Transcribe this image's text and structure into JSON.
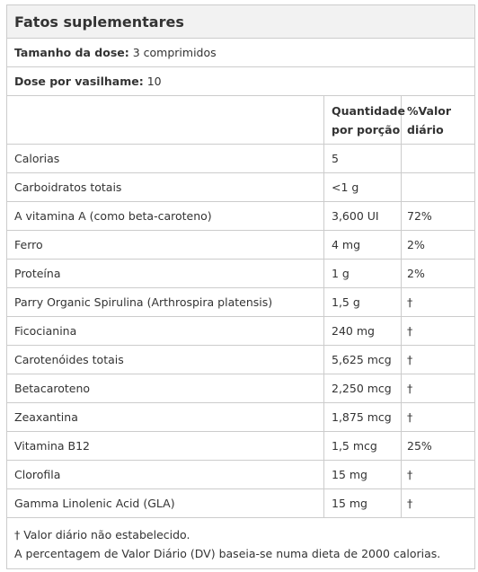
{
  "header": {
    "title": "Fatos suplementares"
  },
  "serving": [
    {
      "label": "Tamanho da dose:",
      "value": "3 comprimidos"
    },
    {
      "label": "Dose por vasilhame:",
      "value": "10"
    }
  ],
  "columns": [
    "Quantidade por porção",
    "%Valor diário"
  ],
  "table": {
    "rows": [
      [
        "Calorias",
        "5",
        ""
      ],
      [
        "Carboidratos totais",
        "<1 g",
        ""
      ],
      [
        "A vitamina A (como beta-caroteno)",
        "3,600 UI",
        "72%"
      ],
      [
        "Ferro",
        "4 mg",
        "2%"
      ],
      [
        "Proteína",
        "1 g",
        "2%"
      ],
      [
        "Parry Organic Spirulina (Arthrospira platensis)",
        "1,5 g",
        "†"
      ],
      [
        "Ficocianina",
        "240 mg",
        "†"
      ],
      [
        "Carotenóides totais",
        "5,625 mcg",
        "†"
      ],
      [
        "Betacaroteno",
        "2,250 mcg",
        "†"
      ],
      [
        "Zeaxantina",
        "1,875 mcg",
        "†"
      ],
      [
        "Vitamina B12",
        "1,5 mcg",
        "25%"
      ],
      [
        "Clorofila",
        "15 mg",
        "†"
      ],
      [
        "Gamma Linolenic Acid (GLA)",
        "15 mg",
        "†"
      ]
    ]
  },
  "footnotes": [
    "† Valor diário não estabelecido.",
    "A percentagem de Valor Diário (DV) baseia-se numa dieta de 2000 calorias."
  ]
}
